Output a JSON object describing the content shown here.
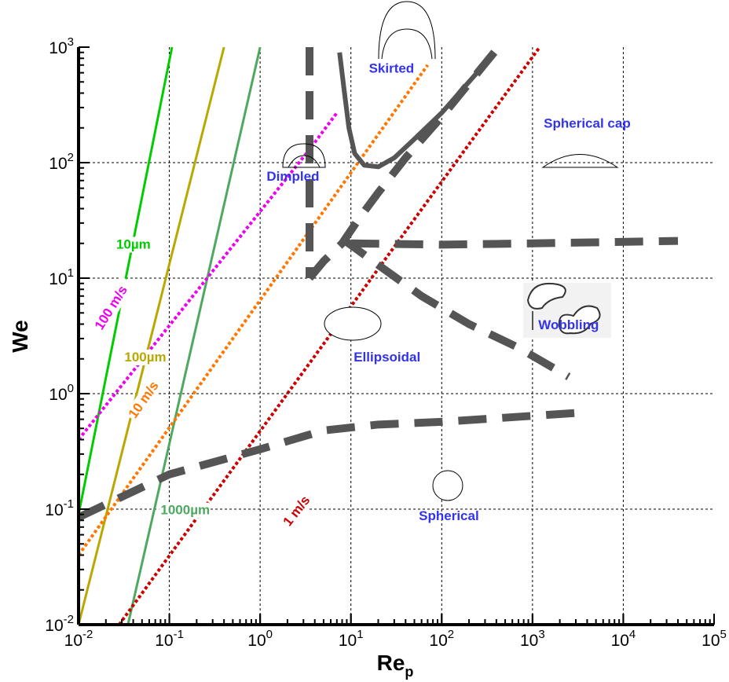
{
  "chart_data": {
    "type": "line",
    "xlabel": "Re",
    "xlabel_sub": "p",
    "ylabel": "We",
    "xscale": "log",
    "yscale": "log",
    "xlim": [
      0.01,
      100000
    ],
    "ylim": [
      0.01,
      1000
    ],
    "grid": true,
    "x_ticks": [
      {
        "base": "10",
        "exp": "-2",
        "value": 0.01
      },
      {
        "base": "10",
        "exp": "-1",
        "value": 0.1
      },
      {
        "base": "10",
        "exp": "0",
        "value": 1
      },
      {
        "base": "10",
        "exp": "1",
        "value": 10
      },
      {
        "base": "10",
        "exp": "2",
        "value": 100
      },
      {
        "base": "10",
        "exp": "3",
        "value": 1000
      },
      {
        "base": "10",
        "exp": "4",
        "value": 10000
      },
      {
        "base": "10",
        "exp": "5",
        "value": 100000
      }
    ],
    "y_ticks": [
      {
        "base": "10",
        "exp": "-2",
        "value": 0.01
      },
      {
        "base": "10",
        "exp": "-1",
        "value": 0.1
      },
      {
        "base": "10",
        "exp": "0",
        "value": 1
      },
      {
        "base": "10",
        "exp": "1",
        "value": 10
      },
      {
        "base": "10",
        "exp": "2",
        "value": 100
      },
      {
        "base": "10",
        "exp": "3",
        "value": 1000
      }
    ],
    "series": [
      {
        "name": "10µm",
        "color": "#00cc00",
        "style": "solid",
        "x": [
          0.01,
          0.107
        ],
        "y": [
          0.09,
          1000
        ]
      },
      {
        "name": "100µm",
        "color": "#b8a800",
        "style": "solid",
        "x": [
          0.01,
          0.4
        ],
        "y": [
          0.01,
          1000
        ]
      },
      {
        "name": "1000µm",
        "color": "#4ea860",
        "style": "solid",
        "x": [
          0.035,
          1.0
        ],
        "y": [
          0.01,
          1000
        ]
      },
      {
        "name": "100 m/s",
        "color": "#ee00ee",
        "style": "dotted",
        "x": [
          0.01,
          3.5,
          7
        ],
        "y": [
          0.4,
          130,
          270
        ]
      },
      {
        "name": "10 m/s",
        "color": "#ff7700",
        "style": "dotted",
        "x": [
          0.01,
          70
        ],
        "y": [
          0.04,
          700
        ]
      },
      {
        "name": "1 m/s",
        "color": "#cc0000",
        "style": "dotted",
        "x": [
          0.028,
          1200
        ],
        "y": [
          0.01,
          1000
        ]
      }
    ],
    "boundaries": [
      {
        "style": "dashed",
        "x": [
          0.01,
          0.1,
          1,
          5,
          20,
          100,
          3000
        ],
        "y": [
          0.085,
          0.2,
          0.33,
          0.48,
          0.54,
          0.57,
          0.68
        ]
      },
      {
        "style": "dashed",
        "x": [
          3.5,
          3.5,
          3.5,
          3.5,
          3.5
        ],
        "y": [
          1000,
          700,
          300,
          100,
          10
        ]
      },
      {
        "style": "dashed",
        "x": [
          3.5,
          5,
          8,
          12,
          20,
          40,
          100,
          400
        ],
        "y": [
          10,
          14,
          20,
          32,
          55,
          110,
          250,
          950
        ]
      },
      {
        "style": "dashed",
        "x": [
          10,
          100,
          1000,
          40000
        ],
        "y": [
          20,
          19.5,
          20,
          21
        ]
      },
      {
        "style": "dashed",
        "x": [
          8,
          20,
          60,
          200,
          700,
          2500
        ],
        "y": [
          22,
          13,
          7,
          4,
          2.5,
          1.4
        ]
      },
      {
        "style": "solid",
        "x": [
          7.5,
          8.5,
          9.5,
          11,
          14,
          20,
          30,
          50,
          100,
          300
        ],
        "y": [
          900,
          400,
          200,
          120,
          95,
          92,
          110,
          160,
          270,
          720
        ]
      }
    ],
    "series_labels": [
      "10µm",
      "100µm",
      "1000µm",
      "100 m/s",
      "10 m/s",
      "1 m/s"
    ],
    "regime_labels": [
      "Skirted",
      "Spherical cap",
      "Dimpled",
      "Ellipsoidal",
      "Wobbling",
      "Spherical"
    ]
  },
  "colors": {
    "boundary": "#555555",
    "regime_text": "#3333ee",
    "grid": "#000000"
  }
}
